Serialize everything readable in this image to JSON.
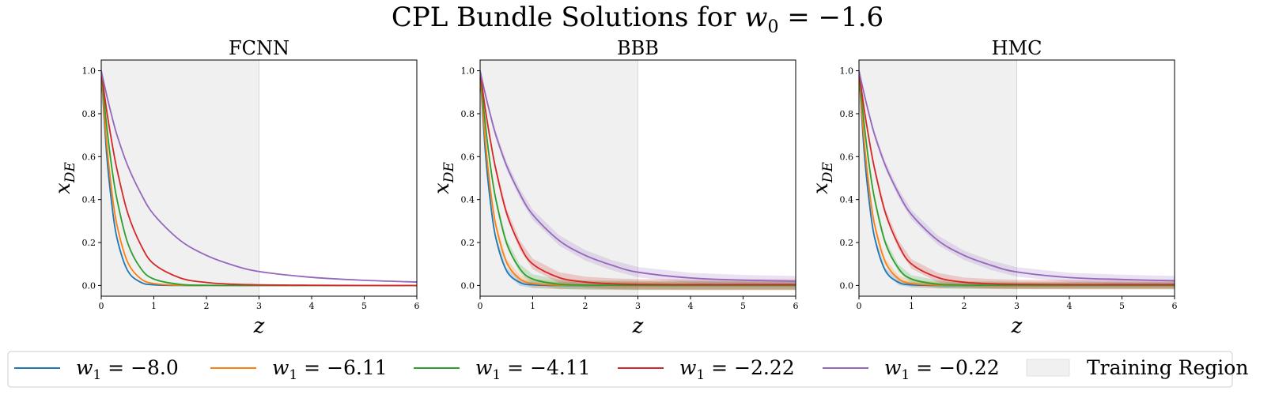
{
  "figure": {
    "title": "CPL Bundle Solutions for w₀ = −1.6",
    "title_parts": {
      "prefix": "CPL Bundle Solutions for ",
      "var": "w",
      "sub": "0",
      "rest": " = −1.6"
    }
  },
  "legend": {
    "items": [
      {
        "var": "w",
        "sub": "1",
        "text": " = −8.0",
        "color": "#1f77b4"
      },
      {
        "var": "w",
        "sub": "1",
        "text": " = −6.11",
        "color": "#ff7f0e"
      },
      {
        "var": "w",
        "sub": "1",
        "text": " = −4.11",
        "color": "#2ca02c"
      },
      {
        "var": "w",
        "sub": "1",
        "text": " = −2.22",
        "color": "#d62728"
      },
      {
        "var": "w",
        "sub": "1",
        "text": " = −0.22",
        "color": "#9467bd"
      }
    ],
    "region_label": "Training Region",
    "region_color": "#d9d9d9"
  },
  "chart_data": [
    {
      "type": "line",
      "title": "FCNN",
      "xlabel": "z",
      "ylabel": "x_DE",
      "ylabel_parts": {
        "var": "x",
        "sub": "DE"
      },
      "xlim": [
        0,
        6
      ],
      "ylim": [
        -0.05,
        1.05
      ],
      "xticks": [
        0,
        1,
        2,
        3,
        4,
        5,
        6
      ],
      "yticks": [
        0.0,
        0.2,
        0.4,
        0.6,
        0.8,
        1.0
      ],
      "ytick_labels": [
        "0.0",
        "0.2",
        "0.4",
        "0.6",
        "0.8",
        "1.0"
      ],
      "training_region": [
        0,
        3
      ],
      "uncertainty_band": false,
      "x": [
        0,
        0.1,
        0.2,
        0.3,
        0.5,
        0.75,
        1.0,
        1.5,
        2.0,
        2.5,
        3.0,
        4.0,
        5.0,
        6.0
      ],
      "series": [
        {
          "name": "w₁ = −8.0",
          "color": "#1f77b4",
          "values": [
            1.0,
            0.62,
            0.38,
            0.22,
            0.07,
            0.015,
            0.003,
            0.0,
            0.0,
            0.0,
            0.0,
            0.0,
            0.0,
            0.0
          ]
        },
        {
          "name": "w₁ = −6.11",
          "color": "#ff7f0e",
          "values": [
            1.0,
            0.67,
            0.44,
            0.28,
            0.11,
            0.032,
            0.009,
            0.001,
            0.0,
            0.0,
            0.0,
            0.0,
            0.0,
            0.0
          ]
        },
        {
          "name": "w₁ = −4.11",
          "color": "#2ca02c",
          "values": [
            1.0,
            0.75,
            0.55,
            0.4,
            0.2,
            0.08,
            0.03,
            0.005,
            0.001,
            0.0,
            0.0,
            0.0,
            0.0,
            0.0
          ]
        },
        {
          "name": "w₁ = −2.22",
          "color": "#d62728",
          "values": [
            1.0,
            0.82,
            0.67,
            0.54,
            0.34,
            0.19,
            0.1,
            0.035,
            0.014,
            0.006,
            0.003,
            0.001,
            0.0,
            0.0
          ]
        },
        {
          "name": "w₁ = −0.22",
          "color": "#9467bd",
          "values": [
            1.0,
            0.89,
            0.79,
            0.7,
            0.56,
            0.43,
            0.33,
            0.21,
            0.14,
            0.095,
            0.065,
            0.038,
            0.024,
            0.016
          ]
        }
      ]
    },
    {
      "type": "line",
      "title": "BBB",
      "xlabel": "z",
      "ylabel": "x_DE",
      "ylabel_parts": {
        "var": "x",
        "sub": "DE"
      },
      "xlim": [
        0,
        6
      ],
      "ylim": [
        -0.05,
        1.05
      ],
      "xticks": [
        0,
        1,
        2,
        3,
        4,
        5,
        6
      ],
      "yticks": [
        0.0,
        0.2,
        0.4,
        0.6,
        0.8,
        1.0
      ],
      "ytick_labels": [
        "0.0",
        "0.2",
        "0.4",
        "0.6",
        "0.8",
        "1.0"
      ],
      "training_region": [
        0,
        3
      ],
      "uncertainty_band": true,
      "x": [
        0,
        0.1,
        0.2,
        0.3,
        0.5,
        0.75,
        1.0,
        1.5,
        2.0,
        2.5,
        3.0,
        4.0,
        5.0,
        6.0
      ],
      "series": [
        {
          "name": "w₁ = −8.0",
          "color": "#1f77b4",
          "values": [
            1.0,
            0.62,
            0.38,
            0.22,
            0.07,
            0.015,
            0.003,
            0.0,
            0.0,
            0.0,
            0.0,
            0.0,
            0.0,
            0.0
          ],
          "spread": [
            0.0,
            0.01,
            0.01,
            0.012,
            0.014,
            0.016,
            0.016,
            0.016,
            0.016,
            0.016,
            0.016,
            0.016,
            0.016,
            0.016
          ]
        },
        {
          "name": "w₁ = −6.11",
          "color": "#ff7f0e",
          "values": [
            1.0,
            0.67,
            0.44,
            0.28,
            0.11,
            0.032,
            0.009,
            0.002,
            0.001,
            0.0,
            0.0,
            0.0,
            0.0,
            0.0
          ],
          "spread": [
            0.0,
            0.01,
            0.012,
            0.014,
            0.016,
            0.018,
            0.02,
            0.02,
            0.02,
            0.02,
            0.02,
            0.02,
            0.02,
            0.02
          ]
        },
        {
          "name": "w₁ = −4.11",
          "color": "#2ca02c",
          "values": [
            1.0,
            0.75,
            0.55,
            0.4,
            0.2,
            0.08,
            0.03,
            0.006,
            0.002,
            0.001,
            0.0,
            0.0,
            0.0,
            0.0
          ],
          "spread": [
            0.0,
            0.01,
            0.012,
            0.015,
            0.018,
            0.02,
            0.022,
            0.022,
            0.022,
            0.022,
            0.022,
            0.022,
            0.022,
            0.022
          ]
        },
        {
          "name": "w₁ = −2.22",
          "color": "#d62728",
          "values": [
            1.0,
            0.82,
            0.67,
            0.54,
            0.34,
            0.19,
            0.1,
            0.037,
            0.016,
            0.008,
            0.005,
            0.004,
            0.004,
            0.004
          ],
          "spread": [
            0.0,
            0.012,
            0.015,
            0.018,
            0.02,
            0.022,
            0.025,
            0.025,
            0.025,
            0.025,
            0.025,
            0.025,
            0.025,
            0.025
          ]
        },
        {
          "name": "w₁ = −0.22",
          "color": "#9467bd",
          "values": [
            1.0,
            0.89,
            0.79,
            0.7,
            0.56,
            0.43,
            0.33,
            0.21,
            0.14,
            0.095,
            0.062,
            0.035,
            0.025,
            0.02
          ],
          "spread": [
            0.0,
            0.012,
            0.015,
            0.018,
            0.02,
            0.022,
            0.024,
            0.024,
            0.024,
            0.024,
            0.024,
            0.024,
            0.024,
            0.024
          ]
        }
      ]
    },
    {
      "type": "line",
      "title": "HMC",
      "xlabel": "z",
      "ylabel": "x_DE",
      "ylabel_parts": {
        "var": "x",
        "sub": "DE"
      },
      "xlim": [
        0,
        6
      ],
      "ylim": [
        -0.05,
        1.05
      ],
      "xticks": [
        0,
        1,
        2,
        3,
        4,
        5,
        6
      ],
      "yticks": [
        0.0,
        0.2,
        0.4,
        0.6,
        0.8,
        1.0
      ],
      "ytick_labels": [
        "0.0",
        "0.2",
        "0.4",
        "0.6",
        "0.8",
        "1.0"
      ],
      "training_region": [
        0,
        3
      ],
      "uncertainty_band": true,
      "x": [
        0,
        0.1,
        0.2,
        0.3,
        0.5,
        0.75,
        1.0,
        1.5,
        2.0,
        2.5,
        3.0,
        4.0,
        5.0,
        6.0
      ],
      "series": [
        {
          "name": "w₁ = −8.0",
          "color": "#1f77b4",
          "values": [
            1.0,
            0.62,
            0.38,
            0.22,
            0.07,
            0.015,
            0.003,
            0.0,
            0.0,
            0.0,
            0.0,
            0.0,
            0.0,
            0.0
          ],
          "spread": [
            0.0,
            0.008,
            0.01,
            0.011,
            0.012,
            0.013,
            0.013,
            0.013,
            0.013,
            0.013,
            0.013,
            0.013,
            0.013,
            0.013
          ]
        },
        {
          "name": "w₁ = −6.11",
          "color": "#ff7f0e",
          "values": [
            1.0,
            0.67,
            0.44,
            0.28,
            0.11,
            0.032,
            0.009,
            0.002,
            0.001,
            0.0,
            0.0,
            0.0,
            0.0,
            0.0
          ],
          "spread": [
            0.0,
            0.008,
            0.01,
            0.012,
            0.014,
            0.015,
            0.016,
            0.016,
            0.016,
            0.016,
            0.016,
            0.016,
            0.016,
            0.016
          ]
        },
        {
          "name": "w₁ = −4.11",
          "color": "#2ca02c",
          "values": [
            1.0,
            0.75,
            0.55,
            0.4,
            0.2,
            0.08,
            0.03,
            0.006,
            0.002,
            0.001,
            0.0,
            0.0,
            0.0,
            0.0
          ],
          "spread": [
            0.0,
            0.008,
            0.01,
            0.012,
            0.015,
            0.017,
            0.018,
            0.018,
            0.018,
            0.018,
            0.018,
            0.018,
            0.018,
            0.018
          ]
        },
        {
          "name": "w₁ = −2.22",
          "color": "#d62728",
          "values": [
            1.0,
            0.82,
            0.67,
            0.54,
            0.34,
            0.19,
            0.1,
            0.037,
            0.015,
            0.008,
            0.005,
            0.004,
            0.004,
            0.004
          ],
          "spread": [
            0.0,
            0.01,
            0.012,
            0.015,
            0.018,
            0.02,
            0.022,
            0.022,
            0.022,
            0.022,
            0.022,
            0.022,
            0.022,
            0.022
          ]
        },
        {
          "name": "w₁ = −0.22",
          "color": "#9467bd",
          "values": [
            1.0,
            0.89,
            0.79,
            0.7,
            0.56,
            0.43,
            0.33,
            0.21,
            0.14,
            0.095,
            0.063,
            0.037,
            0.028,
            0.022
          ],
          "spread": [
            0.0,
            0.01,
            0.012,
            0.015,
            0.018,
            0.02,
            0.022,
            0.022,
            0.022,
            0.022,
            0.022,
            0.022,
            0.022,
            0.022
          ]
        }
      ]
    }
  ]
}
